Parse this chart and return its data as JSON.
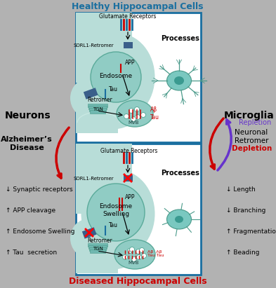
{
  "bg_color": "#b2b2b2",
  "white": "#ffffff",
  "cell_bg": "#b8ddd8",
  "cell_bg2": "#c8e8e2",
  "endosome_color": "#90ccc4",
  "mvb_color": "#90ccc4",
  "tgn_color": "#70b8b0",
  "retromer_color": "#3a5f8a",
  "cell_border": "#1a6fa0",
  "text_blue": "#1a6fa0",
  "text_red": "#cc0000",
  "arrow_red": "#cc0000",
  "arrow_purple": "#6633cc",
  "title_healthy": "Healthy Hippocampal Cells",
  "title_diseased": "Diseased Hippocampal Cells",
  "label_neurons": "Neurons",
  "label_microglia": "Microglia",
  "label_alzheimer": "Alzheimer’s\nDisease",
  "label_repletion": "Repletion",
  "label_depletion": "Depletion",
  "label_neuronal": "Neuronal\nRetromer",
  "left_labels": [
    "↓ Synaptic receptors",
    "↑ APP cleavage",
    "↑ Endosome Swelling",
    "↑ Tau  secretion"
  ],
  "right_labels": [
    "↓ Length",
    "↓ Branching",
    "↑ Fragmentation",
    "↑ Beading"
  ]
}
